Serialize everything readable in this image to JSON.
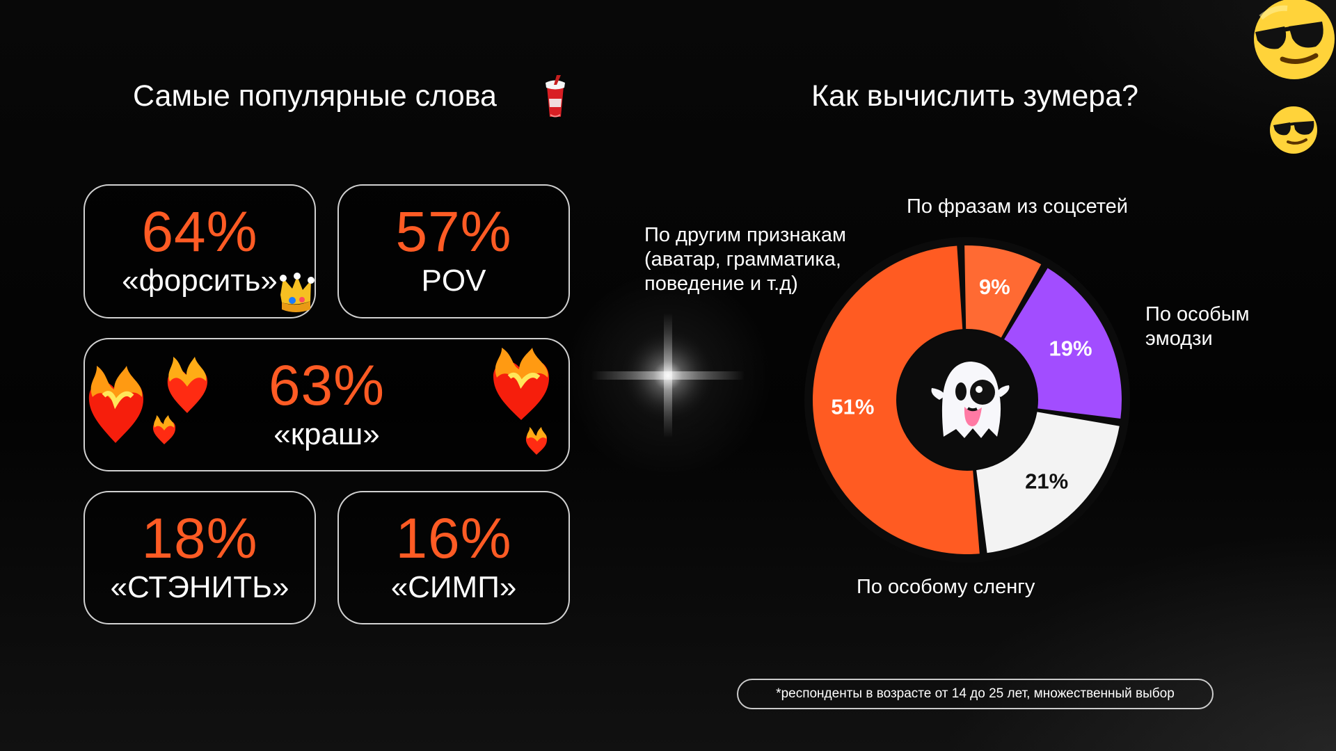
{
  "left_title": "Самые популярные слова",
  "right_title": "Как вычислить зумера?",
  "popular_words": [
    {
      "percent": "64%",
      "word": "«форсить»"
    },
    {
      "percent": "57%",
      "word": "POV"
    },
    {
      "percent": "63%",
      "word": "«краш»"
    },
    {
      "percent": "18%",
      "word": "«СТЭНИТЬ»"
    },
    {
      "percent": "16%",
      "word": "«СИМП»"
    }
  ],
  "icons": {
    "cup": "drink-cup-icon",
    "crown": "crown-icon",
    "hearts": "burning-heart-icon",
    "ghost": "ghost-icon",
    "sunglasses": "sunglasses-face-icon"
  },
  "chart_labels": {
    "social": "По фразам из соцсетей",
    "other": "По другим признакам\n(аватар, грамматика,\nповедение и т.д)",
    "emoji": "По особым\nэмодзи",
    "slang": "По особому сленгу"
  },
  "chart_data": {
    "type": "pie",
    "categories": [
      "По фразам из соцсетей",
      "По особым эмодзи",
      "По особому сленгу",
      "По другим признакам (аватар, грамматика, поведение и т.д)"
    ],
    "values": [
      19,
      21,
      51,
      9
    ],
    "value_labels": [
      "19%",
      "21%",
      "51%",
      "9%"
    ],
    "colors": [
      "#a24dff",
      "#f3f3f3",
      "#ff5b22",
      "#ff6a33"
    ],
    "text_colors": [
      "#ffffff",
      "#111111",
      "#ffffff",
      "#ffffff"
    ],
    "title": "Как вычислить зумера?"
  },
  "footnote": "*респонденты в возрасте от 14 до 25 лет, множественный выбор"
}
